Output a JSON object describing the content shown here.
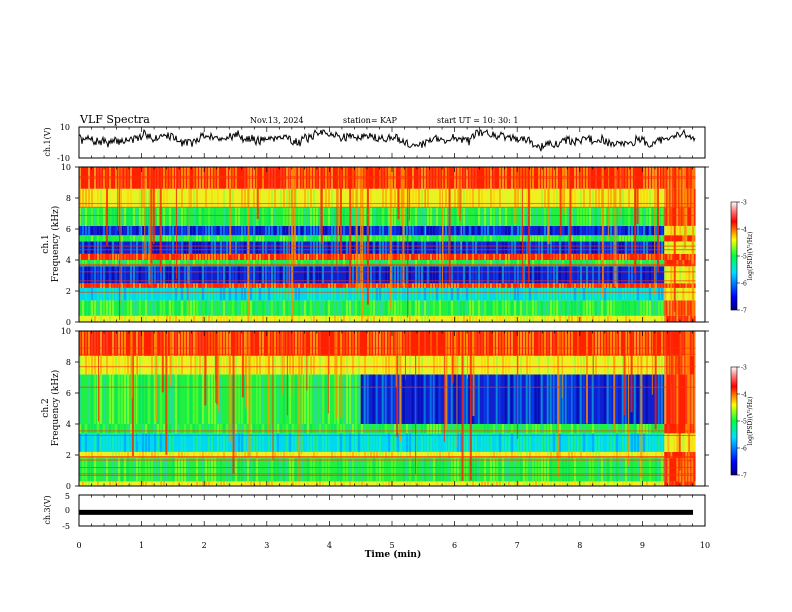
{
  "header": {
    "title": "VLF Spectra",
    "date": "Nov.13, 2024",
    "station": "station= KAP",
    "start": "start  UT  =   10: 30: 1"
  },
  "chart_data": [
    {
      "type": "line",
      "panel": "ch1-waveform",
      "ylabel": "ch.1(V)",
      "ylim": [
        -10,
        10
      ],
      "yticks": [
        "10",
        "-10"
      ],
      "xlim": [
        0,
        10
      ],
      "data_end_min": 9.85,
      "grid": false
    },
    {
      "type": "heatmap",
      "panel": "ch1-spectrogram",
      "ylabel_line1": "ch.1",
      "ylabel_line2": "Frequency  (kHz)",
      "ylim": [
        0,
        10
      ],
      "yticks": [
        "0",
        "2",
        "4",
        "6",
        "8",
        "10"
      ],
      "xlim": [
        0,
        10
      ],
      "data_end_min": 9.85,
      "regime_change_min": 9.35,
      "colorbar": {
        "label": "log(PSD)(V²/Hz)",
        "range": [
          -7,
          -3
        ],
        "ticks": [
          "-3",
          "-4",
          "-5",
          "-6",
          "-7"
        ]
      },
      "bands_khz": [
        {
          "from": 0.0,
          "to": 0.4,
          "level": "mid"
        },
        {
          "from": 0.4,
          "to": 1.4,
          "level": "green"
        },
        {
          "from": 1.4,
          "to": 2.2,
          "level": "cyan"
        },
        {
          "from": 2.2,
          "to": 2.5,
          "level": "high"
        },
        {
          "from": 2.5,
          "to": 3.6,
          "level": "low"
        },
        {
          "from": 3.6,
          "to": 4.0,
          "level": "green"
        },
        {
          "from": 4.0,
          "to": 4.4,
          "level": "high"
        },
        {
          "from": 4.4,
          "to": 5.2,
          "level": "low"
        },
        {
          "from": 5.2,
          "to": 5.6,
          "level": "green"
        },
        {
          "from": 5.6,
          "to": 6.2,
          "level": "low"
        },
        {
          "from": 6.2,
          "to": 7.4,
          "level": "green"
        },
        {
          "from": 7.4,
          "to": 8.6,
          "level": "mid"
        },
        {
          "from": 8.6,
          "to": 10.0,
          "level": "high"
        }
      ]
    },
    {
      "type": "heatmap",
      "panel": "ch2-spectrogram",
      "ylabel_line1": "ch.2",
      "ylabel_line2": "Frequency  (kHz)",
      "ylim": [
        0,
        10
      ],
      "yticks": [
        "0",
        "2",
        "4",
        "6",
        "8",
        "10"
      ],
      "xlim": [
        0,
        10
      ],
      "data_end_min": 9.85,
      "regime_change_min": 9.35,
      "colorbar": {
        "label": "log(PSD)(V²/Hz)",
        "range": [
          -7,
          -3
        ],
        "ticks": [
          "-3",
          "-4",
          "-5",
          "-6",
          "-7"
        ]
      },
      "bands_khz": [
        {
          "from": 0.0,
          "to": 0.3,
          "level": "mid"
        },
        {
          "from": 0.3,
          "to": 1.8,
          "level": "green"
        },
        {
          "from": 1.8,
          "to": 2.2,
          "level": "mid"
        },
        {
          "from": 2.2,
          "to": 3.4,
          "level": "cyan"
        },
        {
          "from": 3.4,
          "to": 4.0,
          "level": "green"
        },
        {
          "from": 4.0,
          "to": 7.2,
          "level": "green",
          "after_min": 4.5,
          "after_level": "low"
        },
        {
          "from": 7.2,
          "to": 8.4,
          "level": "mid"
        },
        {
          "from": 8.4,
          "to": 10.0,
          "level": "high"
        }
      ]
    },
    {
      "type": "line",
      "panel": "ch3-waveform",
      "ylabel": "ch.3(V)",
      "ylim": [
        -5,
        5
      ],
      "yticks": [
        "5",
        "0",
        "-5"
      ],
      "xlim": [
        0,
        10
      ],
      "level_v": -0.6,
      "xlabel": "Time  (min)",
      "xticks": [
        "0",
        "1",
        "2",
        "3",
        "4",
        "5",
        "6",
        "7",
        "8",
        "9",
        "10"
      ]
    }
  ]
}
